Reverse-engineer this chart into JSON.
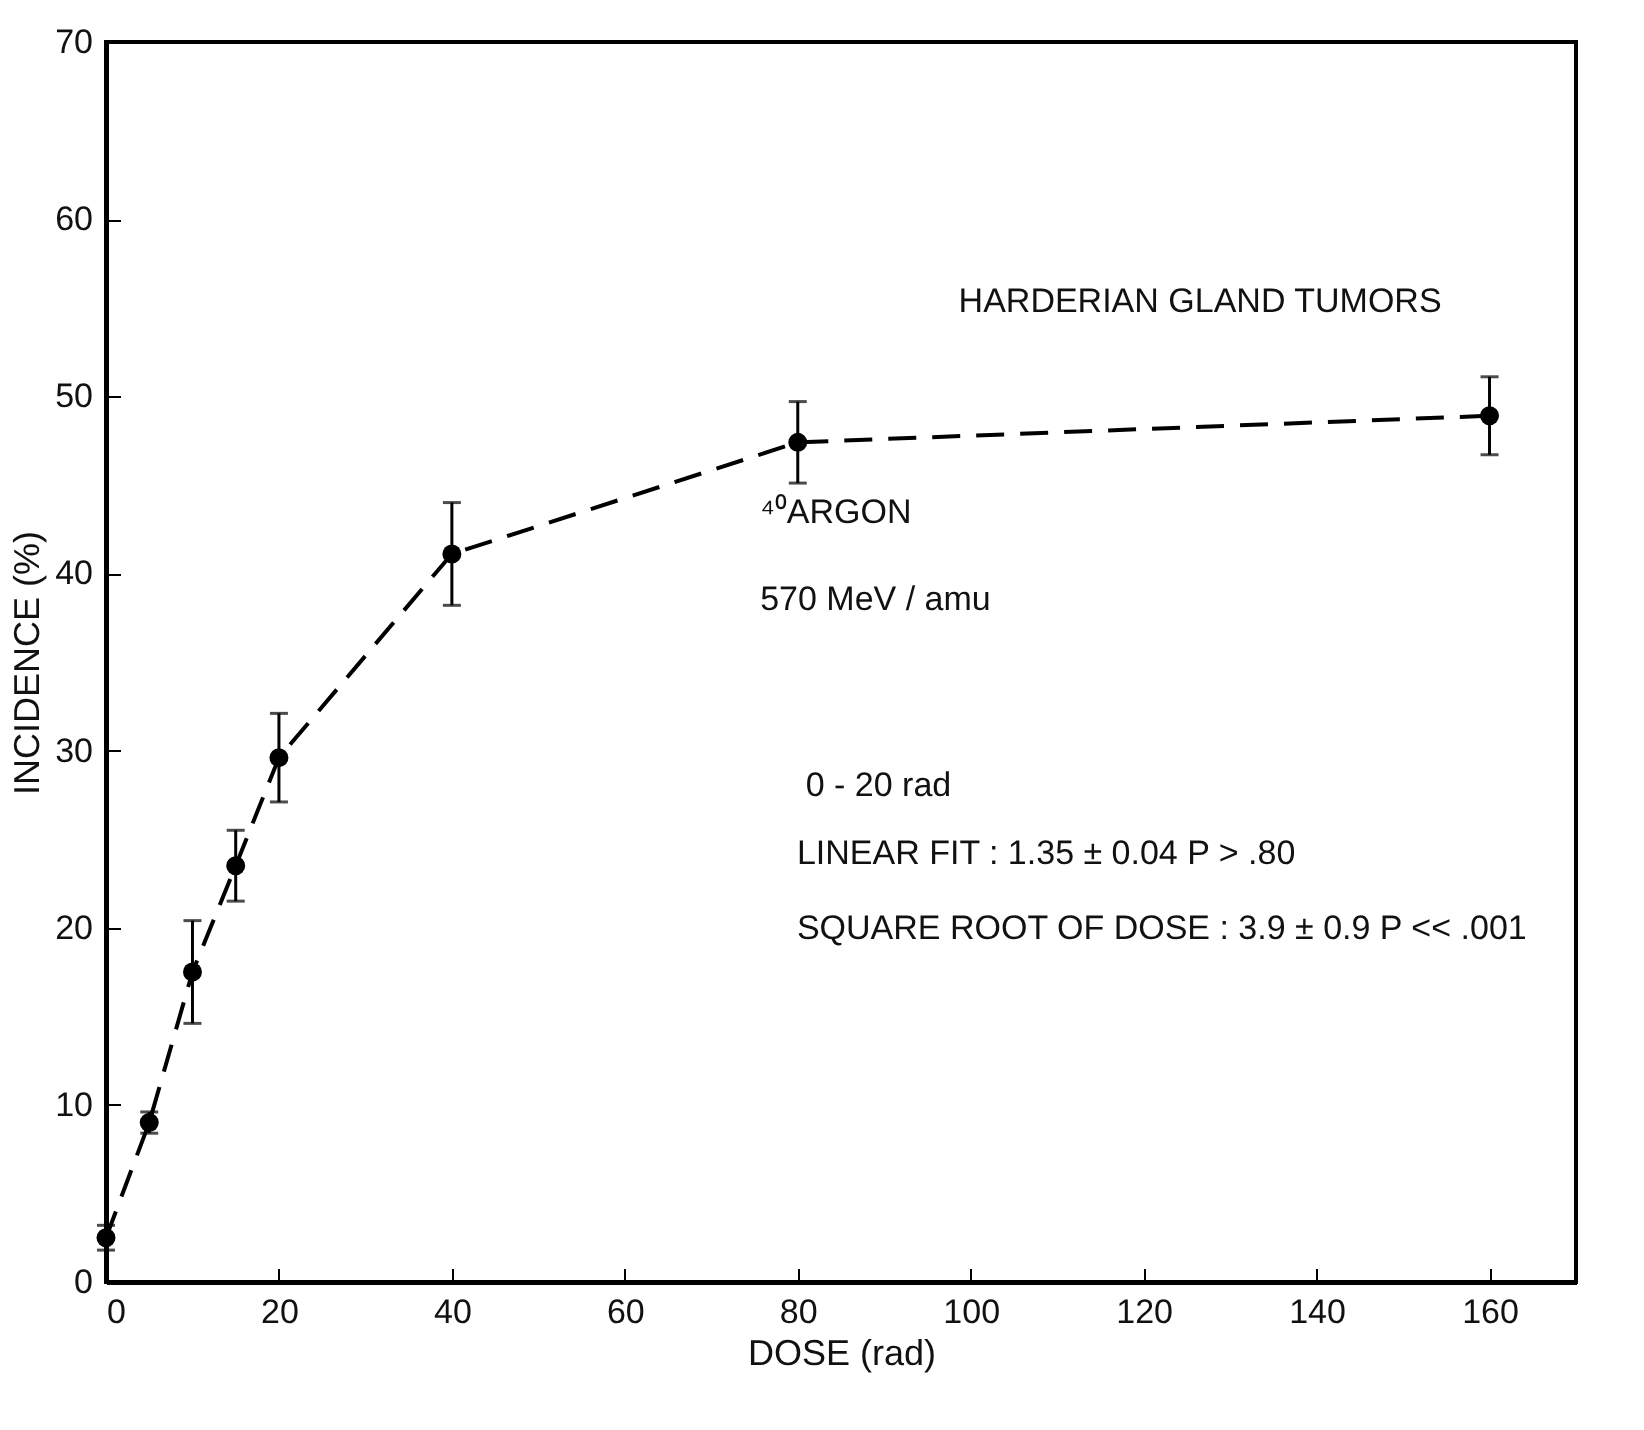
{
  "chart_data": {
    "type": "line",
    "xlabel": "DOSE (rad)",
    "ylabel": "INCIDENCE (%)",
    "x": [
      0,
      5,
      10,
      15,
      20,
      40,
      80,
      160
    ],
    "series": [
      {
        "color": "#000000",
        "values": [
          2.5,
          9.0,
          17.5,
          23.5,
          29.6,
          41.1,
          47.4,
          48.9
        ],
        "errors": [
          0.7,
          0.6,
          2.9,
          2.0,
          2.5,
          2.9,
          2.3,
          2.2
        ]
      }
    ],
    "xlim": [
      0,
      170
    ],
    "xticks": [
      0,
      20,
      40,
      60,
      80,
      100,
      120,
      140,
      160
    ],
    "ylim": [
      0,
      70
    ],
    "yticks": [
      0,
      10,
      20,
      30,
      40,
      50,
      60,
      70
    ],
    "marker": "circle",
    "line_style": "dashed",
    "grid": false,
    "annotations": [
      "HARDERIAN GLAND TUMORS",
      "⁴⁰ARGON",
      "570 MeV / amu",
      "0 - 20 rad",
      "LINEAR FIT : 1.35 ± 0.04 P > .80",
      "SQUARE ROOT OF DOSE : 3.9 ± 0.9 P << .001"
    ]
  }
}
